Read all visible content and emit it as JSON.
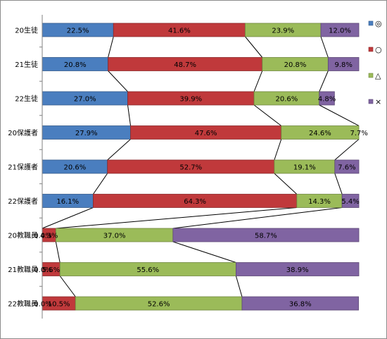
{
  "chart_data": {
    "type": "bar",
    "orientation": "horizontal",
    "stacked": "100%",
    "categories": [
      "20生徒",
      "21生徒",
      "22生徒",
      "20保護者",
      "21保護者",
      "22保護者",
      "20教職員",
      "21教職員",
      "22教職員"
    ],
    "series": [
      {
        "name": "◎",
        "color": "#4a7ebf",
        "values": [
          22.5,
          20.8,
          27.0,
          27.9,
          20.6,
          16.1,
          0.0,
          0.0,
          0.0
        ]
      },
      {
        "name": "○",
        "color": "#c0393b",
        "values": [
          41.6,
          48.7,
          39.9,
          47.6,
          52.7,
          64.3,
          4.3,
          5.6,
          10.5
        ]
      },
      {
        "name": "△",
        "color": "#9bbb59",
        "values": [
          23.9,
          20.8,
          20.6,
          24.6,
          19.1,
          14.3,
          37.0,
          55.6,
          52.6
        ]
      },
      {
        "name": "×",
        "color": "#8064a2",
        "values": [
          12.0,
          9.8,
          4.8,
          7.7,
          7.6,
          5.4,
          58.7,
          38.9,
          36.8
        ]
      }
    ],
    "value_labels": [
      [
        "22.5%",
        "20.8%",
        "27.0%",
        "27.9%",
        "20.6%",
        "16.1%",
        "0.0%",
        "0.0%",
        "0.0%"
      ],
      [
        "41.6%",
        "48.7%",
        "39.9%",
        "47.6%",
        "52.7%",
        "64.3%",
        "4.3%",
        "5.6%",
        "10.5%"
      ],
      [
        "23.9%",
        "20.8%",
        "20.6%",
        "24.6%",
        "19.1%",
        "14.3%",
        "37.0%",
        "55.6%",
        "52.6%"
      ],
      [
        "12.0%",
        "9.8%",
        "4.8%",
        "7.7%",
        "7.6%",
        "5.4%",
        "58.7%",
        "38.9%",
        "36.8%"
      ]
    ],
    "xlim": [
      0,
      100
    ],
    "series_lines": true,
    "grid": false,
    "legend_position": "right"
  }
}
